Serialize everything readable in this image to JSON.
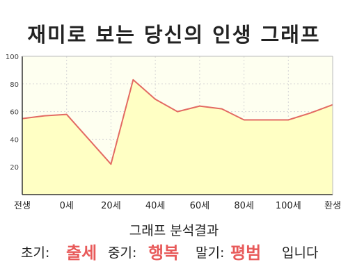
{
  "title": "재미로 보는 당신의 인생 그래프",
  "chart_data": {
    "type": "area",
    "x_ticks": [
      "전생",
      "0세",
      "20세",
      "40세",
      "60세",
      "80세",
      "100세",
      "환생"
    ],
    "x": [
      0,
      0.5,
      1.0,
      1.5,
      2.0,
      2.5,
      3.0,
      3.5,
      4.0,
      4.5,
      5.0,
      5.5,
      6.0,
      6.5,
      7.0
    ],
    "values": [
      55,
      57,
      58,
      40,
      22,
      83,
      69,
      60,
      64,
      62,
      54,
      54,
      54,
      59,
      65
    ],
    "ylim": [
      0,
      100
    ],
    "y_ticks": [
      100,
      80,
      60,
      40,
      20
    ],
    "grid": true,
    "colors": {
      "line": "#e36a62",
      "fill": "#ffffc4",
      "plot_bg": "#fefff0",
      "grid": "#d6d6d6"
    }
  },
  "subtitle": "그래프 분석결과",
  "summary": {
    "early_label": "초기:",
    "early_value": "출세",
    "middle_label": "중기:",
    "middle_value": "행복",
    "late_label": "말기:",
    "late_value": "평범",
    "ending": "입니다"
  }
}
